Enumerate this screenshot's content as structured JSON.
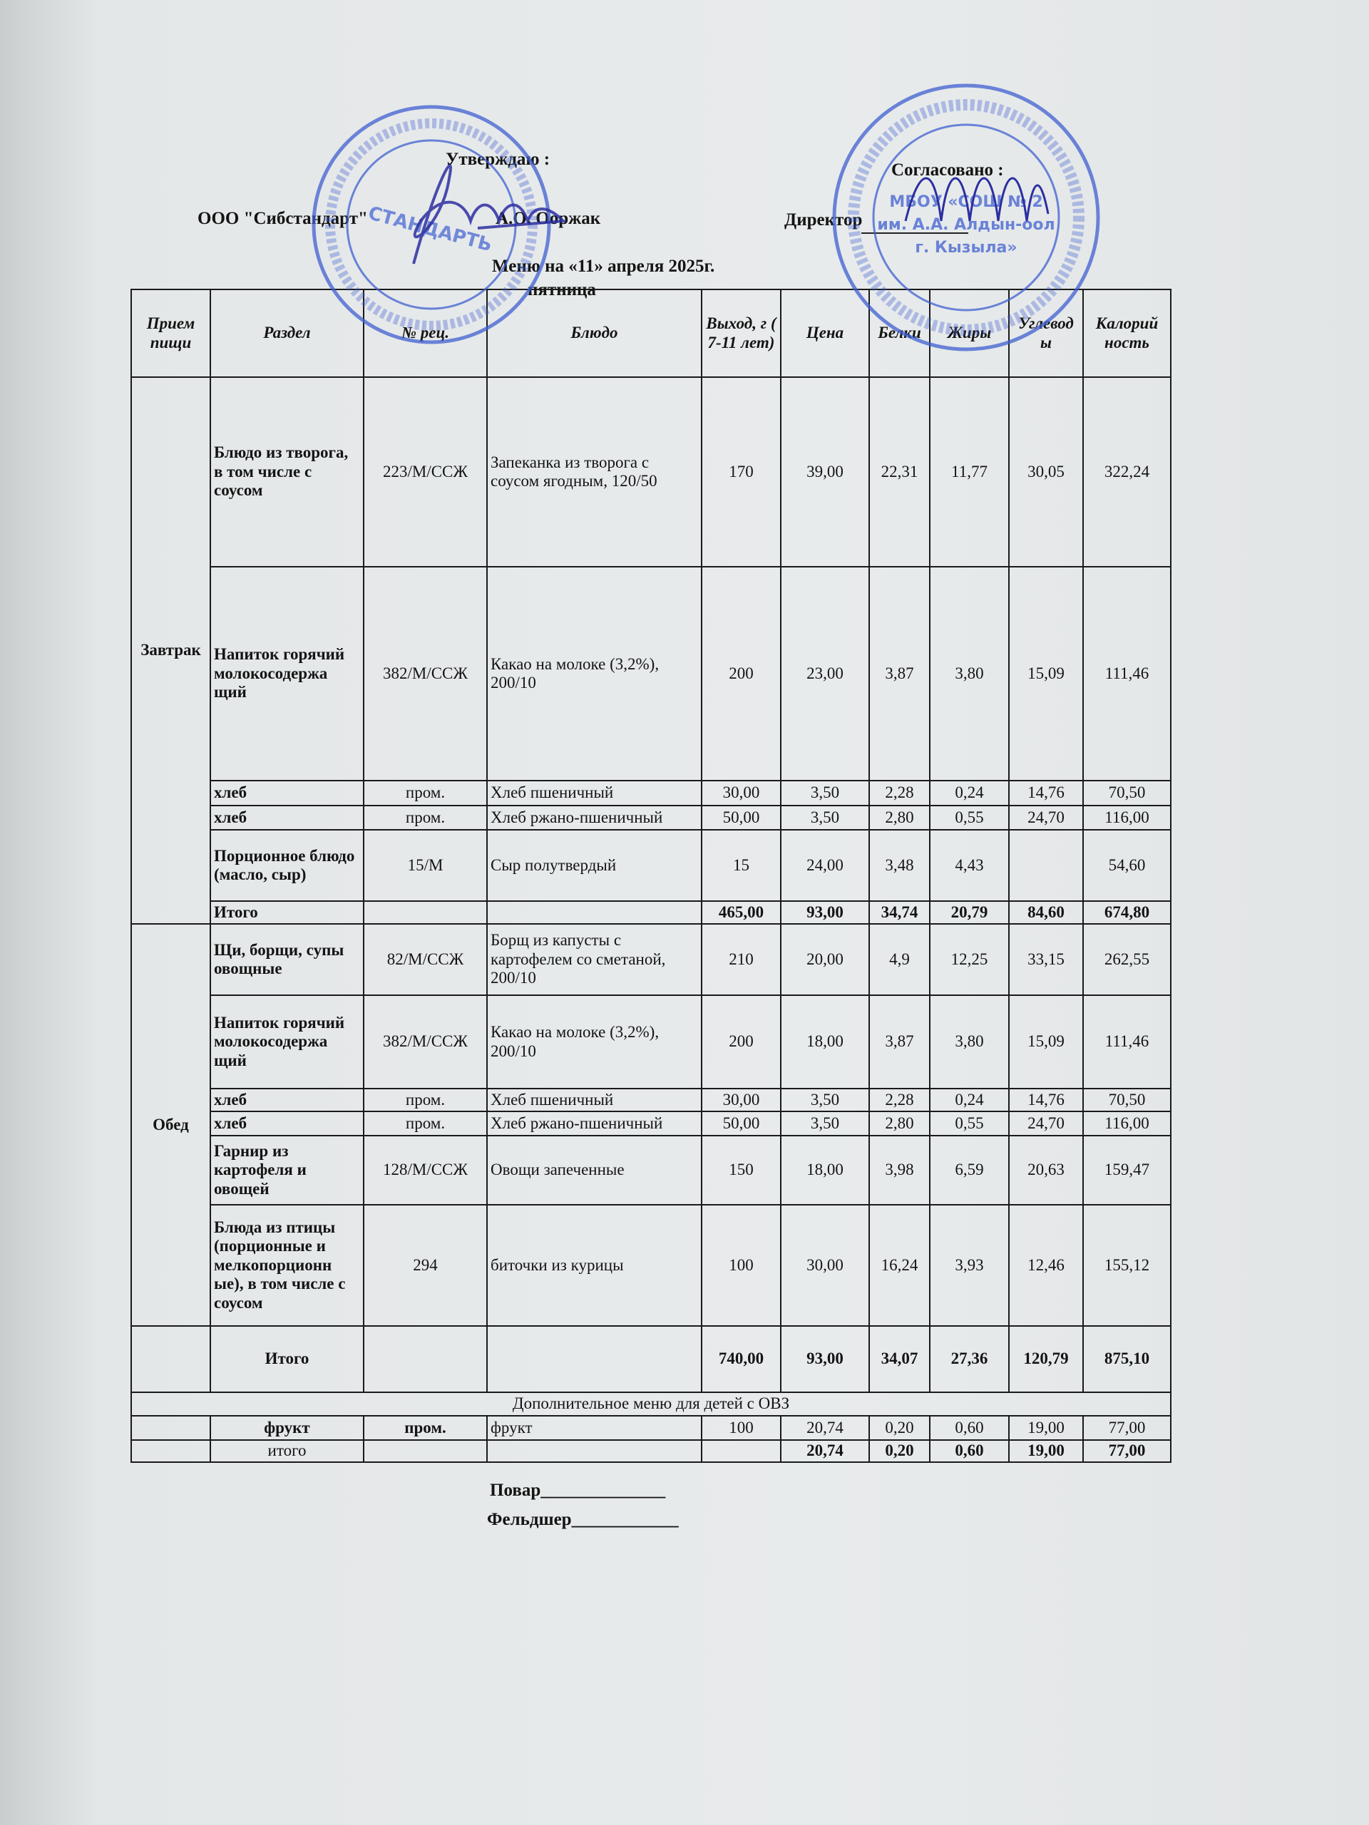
{
  "header": {
    "approved_label": "Утверждаю :",
    "org": "ООО \"Сибстандарт\"",
    "approver": "А.О. Ооржак",
    "agreed_label": "Согласовано :",
    "director_label": "Директор",
    "menu_title": "Меню на «11»  апреля  2025г.",
    "weekday": "пятница"
  },
  "stamps": {
    "left_text": "ООО «СИБСТАНДАРТЬ» РЕСПУБЛИКА ТЫВА КЫЗЫЛ",
    "right_text": "МБОУ «СОШ № 2 им. А.А. Алдын-оол г. Кызыла»"
  },
  "columns": [
    "Прием пищи",
    "Раздел",
    "№ рец.",
    "Блюдо",
    "Выход, г ( 7-11 лет)",
    "Цена",
    "Белки",
    "Жиры",
    "Углевод ы",
    "Калорий ность"
  ],
  "meals": [
    {
      "name": "Завтрак",
      "rows": [
        {
          "section": "Блюдо из творога, в том числе с соусом",
          "recipe": "223/М/ССЖ",
          "dish": "Запеканка из творога с соусом ягодным, 120/50",
          "yield": "170",
          "price": "39,00",
          "protein": "22,31",
          "fat": "11,77",
          "carbs": "30,05",
          "kcal": "322,24"
        },
        {
          "section": "Напиток горячий молокосодержа щий",
          "recipe": "382/М/ССЖ",
          "dish": "Какао на молоке (3,2%), 200/10",
          "yield": "200",
          "price": "23,00",
          "protein": "3,87",
          "fat": "3,80",
          "carbs": "15,09",
          "kcal": "111,46"
        },
        {
          "section": "хлеб",
          "recipe": "пром.",
          "dish": "Хлеб пшеничный",
          "yield": "30,00",
          "price": "3,50",
          "protein": "2,28",
          "fat": "0,24",
          "carbs": "14,76",
          "kcal": "70,50"
        },
        {
          "section": "хлеб",
          "recipe": "пром.",
          "dish": "Хлеб ржано-пшеничный",
          "yield": "50,00",
          "price": "3,50",
          "protein": "2,80",
          "fat": "0,55",
          "carbs": "24,70",
          "kcal": "116,00"
        },
        {
          "section": "Порционное блюдо (масло, сыр)",
          "recipe": "15/М",
          "dish": "Сыр полутвердый",
          "yield": "15",
          "price": "24,00",
          "protein": "3,48",
          "fat": "4,43",
          "carbs": "",
          "kcal": "54,60"
        }
      ],
      "total": {
        "label": "Итого",
        "yield": "465,00",
        "price": "93,00",
        "protein": "34,74",
        "fat": "20,79",
        "carbs": "84,60",
        "kcal": "674,80"
      }
    },
    {
      "name": "Обед",
      "rows": [
        {
          "section": "Щи, борщи, супы овощные",
          "recipe": "82/М/ССЖ",
          "dish": "Борщ из капусты с картофелем со сметаной, 200/10",
          "yield": "210",
          "price": "20,00",
          "protein": "4,9",
          "fat": "12,25",
          "carbs": "33,15",
          "kcal": "262,55"
        },
        {
          "section": "Напиток горячий молокосодержа щий",
          "recipe": "382/М/ССЖ",
          "dish": "Какао на молоке (3,2%), 200/10",
          "yield": "200",
          "price": "18,00",
          "protein": "3,87",
          "fat": "3,80",
          "carbs": "15,09",
          "kcal": "111,46"
        },
        {
          "section": "хлеб",
          "recipe": "пром.",
          "dish": "Хлеб пшеничный",
          "yield": "30,00",
          "price": "3,50",
          "protein": "2,28",
          "fat": "0,24",
          "carbs": "14,76",
          "kcal": "70,50"
        },
        {
          "section": "хлеб",
          "recipe": "пром.",
          "dish": "Хлеб ржано-пшеничный",
          "yield": "50,00",
          "price": "3,50",
          "protein": "2,80",
          "fat": "0,55",
          "carbs": "24,70",
          "kcal": "116,00"
        },
        {
          "section": "Гарнир из картофеля и овощей",
          "recipe": "128/М/ССЖ",
          "dish": "Овощи запеченные",
          "yield": "150",
          "price": "18,00",
          "protein": "3,98",
          "fat": "6,59",
          "carbs": "20,63",
          "kcal": "159,47"
        },
        {
          "section": "Блюда из птицы (порционные и мелкопорционн ые), в том числе с соусом",
          "recipe": "294",
          "dish": "биточки из курицы",
          "yield": "100",
          "price": "30,00",
          "protein": "16,24",
          "fat": "3,93",
          "carbs": "12,46",
          "kcal": "155,12"
        }
      ],
      "total": {
        "label": "Итого",
        "yield": "740,00",
        "price": "93,00",
        "protein": "34,07",
        "fat": "27,36",
        "carbs": "120,79",
        "kcal": "875,10"
      }
    }
  ],
  "extra": {
    "title": "Дополнительное меню для детей с ОВЗ",
    "row": {
      "section": "фрукт",
      "recipe": "пром.",
      "dish": "фрукт",
      "yield": "100",
      "price": "20,74",
      "protein": "0,20",
      "fat": "0,60",
      "carbs": "19,00",
      "kcal": "77,00"
    },
    "total": {
      "label": "итого",
      "price": "20,74",
      "protein": "0,20",
      "fat": "0,60",
      "carbs": "19,00",
      "kcal": "77,00"
    }
  },
  "footer": {
    "cook": "Повар______________",
    "medic": "Фельдшер____________"
  },
  "colors": {
    "stamp": "#3f5fd0",
    "ink": "#141414",
    "signature": "#2b2fa0"
  }
}
